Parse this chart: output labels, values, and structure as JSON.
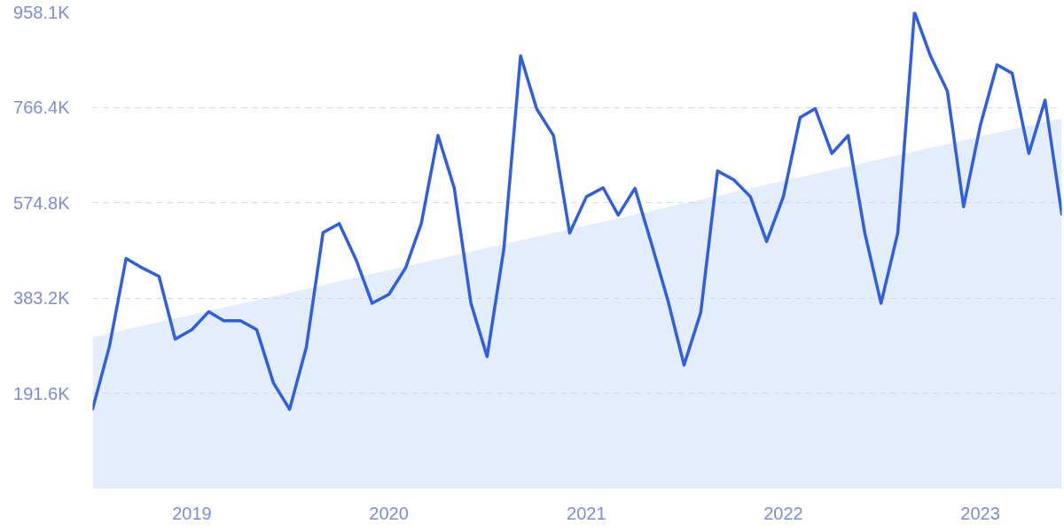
{
  "chart_data": {
    "type": "line",
    "x": [
      "2018-07",
      "2018-08",
      "2018-09",
      "2018-10",
      "2018-11",
      "2018-12",
      "2019-01",
      "2019-02",
      "2019-03",
      "2019-04",
      "2019-05",
      "2019-06",
      "2019-07",
      "2019-08",
      "2019-09",
      "2019-10",
      "2019-11",
      "2019-12",
      "2020-01",
      "2020-02",
      "2020-03",
      "2020-04",
      "2020-05",
      "2020-06",
      "2020-07",
      "2020-08",
      "2020-09",
      "2020-10",
      "2020-11",
      "2020-12",
      "2021-01",
      "2021-02",
      "2021-03",
      "2021-04",
      "2021-05",
      "2021-06",
      "2021-07",
      "2021-08",
      "2021-09",
      "2021-10",
      "2021-11",
      "2021-12",
      "2022-01",
      "2022-02",
      "2022-03",
      "2022-04",
      "2022-05",
      "2022-06",
      "2022-07",
      "2022-08",
      "2022-09",
      "2022-10",
      "2022-11",
      "2022-12",
      "2023-01",
      "2023-02",
      "2023-03",
      "2023-04",
      "2023-05",
      "2023-06"
    ],
    "series": [
      {
        "type": "area",
        "color": "#e3edfb",
        "x": [
          "2018-07",
          "2023-06"
        ],
        "values": [
          305,
          745
        ]
      },
      {
        "color": "#2f5fe0",
        "values": [
          161,
          286,
          463,
          444,
          427,
          301,
          320,
          356,
          338,
          338,
          320,
          213,
          160,
          285,
          515,
          533,
          461,
          373,
          391,
          444,
          533,
          710,
          605,
          373,
          266,
          482,
          870,
          763,
          710,
          514,
          587,
          605,
          550,
          604,
          495,
          379,
          249,
          355,
          639,
          621,
          587,
          497,
          587,
          746,
          764,
          674,
          710,
          514,
          373,
          514,
          958,
          869,
          799,
          567,
          730,
          852,
          835,
          674,
          781,
          552
        ]
      }
    ],
    "xlim": [
      "2018-07",
      "2023-06"
    ],
    "xticks": [
      "2019",
      "2020",
      "2021",
      "2022",
      "2023"
    ],
    "ylim": [
      0,
      958.1
    ],
    "yticks": [
      {
        "value": 191.6,
        "label": "191.6K"
      },
      {
        "value": 383.2,
        "label": "383.2K"
      },
      {
        "value": 574.8,
        "label": "574.8K"
      },
      {
        "value": 766.4,
        "label": "766.4K"
      },
      {
        "value": 958.1,
        "label": "958.1K"
      }
    ],
    "grid": "y"
  }
}
